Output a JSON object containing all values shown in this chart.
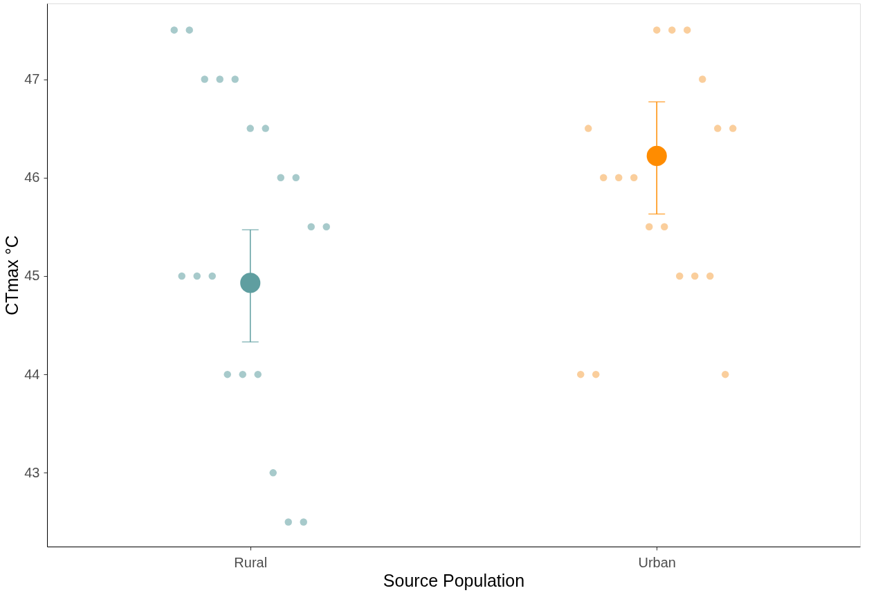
{
  "chart_data": {
    "type": "scatter",
    "xlabel": "Source Population",
    "ylabel": "CTmax °C",
    "categories": [
      "Rural",
      "Urban"
    ],
    "series": [
      {
        "color": "#5f9ea0",
        "x": [
          "Rural",
          "Rural",
          "Rural",
          "Rural",
          "Rural",
          "Rural",
          "Rural",
          "Rural",
          "Rural",
          "Rural",
          "Rural",
          "Rural",
          "Rural",
          "Rural",
          "Rural",
          "Rural",
          "Rural",
          "Rural",
          "Rural",
          "Rural"
        ],
        "values": [
          47.5,
          47.5,
          47,
          47,
          47,
          46.5,
          46.5,
          46,
          46,
          45.5,
          45.5,
          45,
          45,
          45,
          44,
          44,
          44,
          43,
          42.5,
          42.5
        ]
      },
      {
        "color": "#f5a54a",
        "x": [
          "Urban",
          "Urban",
          "Urban",
          "Urban",
          "Urban",
          "Urban",
          "Urban",
          "Urban",
          "Urban",
          "Urban",
          "Urban",
          "Urban",
          "Urban",
          "Urban",
          "Urban",
          "Urban",
          "Urban",
          "Urban"
        ],
        "values": [
          47.5,
          47.5,
          47.5,
          47,
          46.5,
          46.5,
          46.5,
          46,
          46,
          46,
          45.5,
          45.5,
          45,
          45,
          45,
          44,
          44,
          44
        ]
      },
      {
        "x": [
          "Rural",
          "Urban"
        ],
        "colors": [
          "#5f9ea0",
          "#ff8c00"
        ],
        "values": [
          44.93,
          46.22
        ],
        "errors": [
          [
            44.33,
            45.47
          ],
          [
            45.63,
            46.77
          ]
        ]
      }
    ],
    "ylim": [
      42.25,
      47.77
    ],
    "yticks": [
      43,
      44,
      45,
      46,
      47
    ],
    "grid": false,
    "marker": "circle"
  }
}
